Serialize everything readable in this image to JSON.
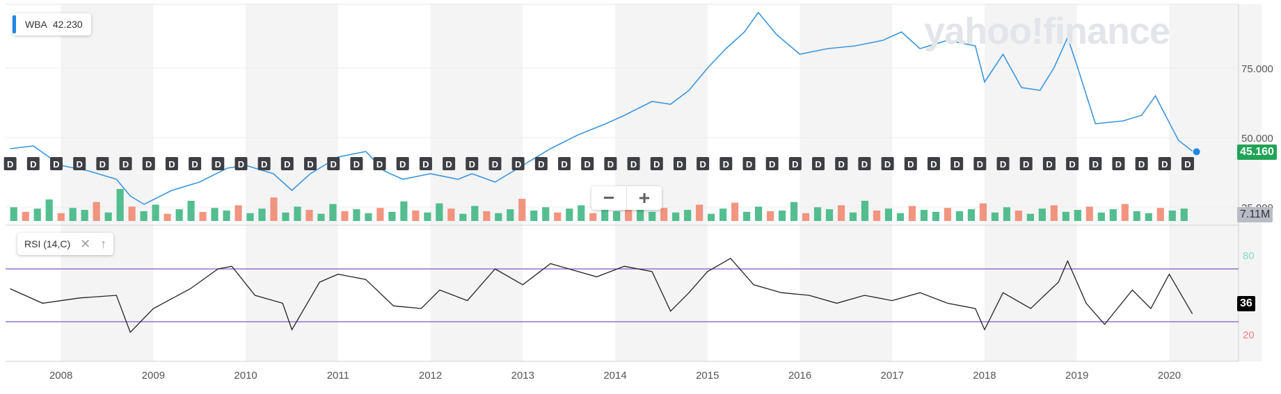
{
  "ticker_legend": {
    "symbol": "WBA",
    "value": "42.230"
  },
  "watermark": "yahoo!finance",
  "price_tag": "45.160",
  "volume_tag": "7.11M",
  "rsi_tag": "36",
  "rsi_panel": {
    "label": "RSI (14,C)",
    "close_icon": "close-icon",
    "move_up_icon": "arrow-up-icon"
  },
  "zoom": {
    "minus": "−",
    "plus": "+"
  },
  "dividend_marker": "D",
  "colors": {
    "price_line": "#3a95dd",
    "rsi_line": "#222222",
    "rsi_band": "#7e57c2",
    "vol_up": "#36b37e",
    "vol_down": "#f0826a",
    "price_tag": "#21a357",
    "rsi_80": "#7fdcc4",
    "rsi_20": "#f08080"
  },
  "chart_data": [
    {
      "type": "line",
      "series": [
        {
          "x": [
            2007.45,
            2007.7,
            2008.0,
            2008.3,
            2008.6,
            2008.75,
            2008.9,
            2009.2,
            2009.5,
            2009.8,
            2010.0,
            2010.3,
            2010.5,
            2010.7,
            2011.0,
            2011.3,
            2011.5,
            2011.7,
            2012.0,
            2012.3,
            2012.45,
            2012.7,
            2013.0,
            2013.3,
            2013.6,
            2013.9,
            2014.1,
            2014.4,
            2014.6,
            2014.8,
            2015.0,
            2015.2,
            2015.4,
            2015.55,
            2015.75,
            2016.0,
            2016.3,
            2016.6,
            2016.9,
            2017.1,
            2017.3,
            2017.6,
            2017.9,
            2018.0,
            2018.2,
            2018.4,
            2018.6,
            2018.75,
            2018.9,
            2019.0,
            2019.2,
            2019.5,
            2019.7,
            2019.85,
            2020.1,
            2020.25
          ],
          "y": [
            46,
            47,
            40,
            38,
            35,
            29,
            26,
            31,
            34,
            39,
            40,
            37,
            31,
            37,
            43,
            45,
            38,
            35,
            37,
            35,
            37,
            34,
            40,
            46,
            51,
            55,
            58,
            63,
            62,
            67,
            75,
            82,
            88,
            95,
            87,
            80,
            82,
            83,
            85,
            88,
            82,
            85,
            83,
            70,
            80,
            68,
            67,
            75,
            86,
            76,
            55,
            56,
            58,
            65,
            49,
            45.16
          ]
        }
      ],
      "x_ticks": [
        "2008",
        "2009",
        "2010",
        "2011",
        "2012",
        "2013",
        "2014",
        "2015",
        "2016",
        "2017",
        "2018",
        "2019",
        "2020"
      ],
      "y_ticks": [
        "75.000",
        "50.000",
        "25.000"
      ],
      "ylim": [
        20,
        98
      ],
      "xlim": [
        2007.4,
        2020.75
      ],
      "grid": true,
      "legend": "top-left"
    },
    {
      "type": "bar",
      "title": "",
      "x_range": [
        2007.45,
        2020.25
      ],
      "values": [
        2.1,
        1.4,
        1.9,
        3.3,
        1.2,
        2.0,
        1.7,
        2.9,
        1.3,
        4.9,
        2.2,
        1.5,
        2.5,
        1.1,
        1.8,
        3.1,
        1.4,
        2.0,
        1.6,
        2.4,
        1.2,
        1.9,
        3.6,
        1.3,
        2.2,
        1.7,
        1.1,
        2.6,
        1.5,
        1.8,
        1.2,
        2.0,
        1.4,
        3.0,
        1.6,
        1.3,
        2.7,
        1.9,
        1.1,
        2.3,
        1.5,
        1.2,
        1.8,
        3.4,
        1.6,
        2.1,
        1.3,
        1.9,
        2.4,
        1.2,
        3.2,
        1.5,
        1.8,
        2.6,
        1.4,
        2.0,
        1.3,
        1.7,
        2.5,
        1.1,
        1.9,
        2.8,
        1.4,
        2.2,
        1.5,
        1.6,
        2.9,
        1.2,
        2.1,
        1.8,
        2.4,
        1.3,
        3.1,
        1.6,
        1.9,
        1.2,
        2.3,
        1.7,
        1.4,
        2.0,
        1.5,
        1.8,
        2.7,
        1.3,
        2.1,
        1.6,
        1.1,
        1.9,
        2.4,
        1.4,
        1.7,
        2.2,
        1.3,
        1.8,
        2.6,
        1.5,
        1.2,
        2.0,
        1.6,
        1.9
      ],
      "series_colors": [
        "#36b37e",
        "#f0826a"
      ]
    },
    {
      "type": "line",
      "x": [
        2007.45,
        2007.8,
        2008.2,
        2008.6,
        2008.75,
        2009.0,
        2009.4,
        2009.7,
        2009.85,
        2010.1,
        2010.4,
        2010.5,
        2010.8,
        2011.0,
        2011.3,
        2011.6,
        2011.9,
        2012.1,
        2012.4,
        2012.7,
        2013.0,
        2013.3,
        2013.5,
        2013.8,
        2014.1,
        2014.4,
        2014.6,
        2014.8,
        2015.0,
        2015.25,
        2015.5,
        2015.8,
        2016.1,
        2016.4,
        2016.7,
        2017.0,
        2017.3,
        2017.6,
        2017.9,
        2018.0,
        2018.2,
        2018.5,
        2018.8,
        2018.9,
        2019.1,
        2019.3,
        2019.6,
        2019.8,
        2020.0,
        2020.25
      ],
      "y": [
        55,
        44,
        48,
        50,
        22,
        40,
        55,
        70,
        72,
        50,
        44,
        24,
        60,
        66,
        62,
        42,
        40,
        54,
        46,
        70,
        58,
        74,
        70,
        64,
        72,
        68,
        38,
        52,
        68,
        78,
        58,
        52,
        50,
        44,
        50,
        46,
        52,
        44,
        40,
        24,
        52,
        40,
        60,
        76,
        44,
        28,
        54,
        40,
        66,
        36
      ],
      "y_ticks": [
        "80",
        "20"
      ],
      "ylim": [
        0,
        100
      ],
      "grid": true
    }
  ]
}
